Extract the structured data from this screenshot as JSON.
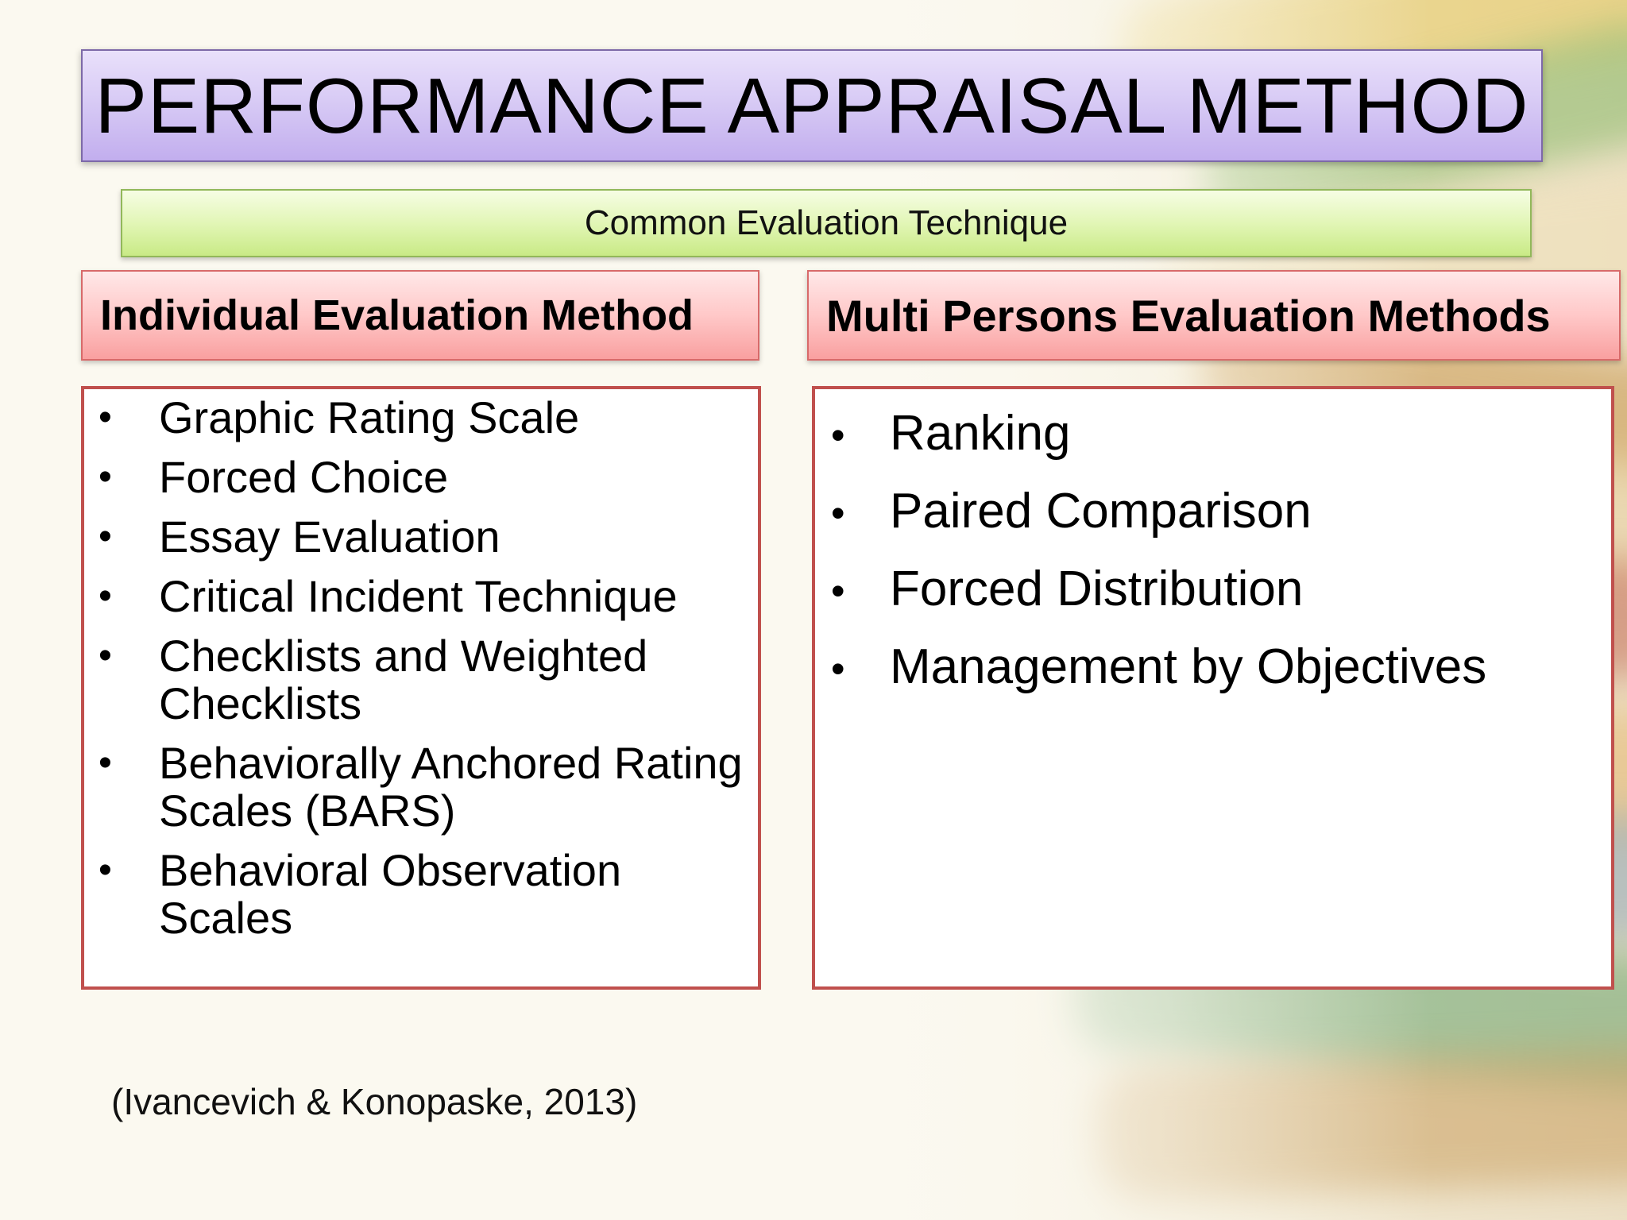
{
  "slide": {
    "title": "PERFORMANCE APPRAISAL METHOD",
    "subtitle": "Common Evaluation Technique",
    "citation": "(Ivancevich & Konopaske, 2013)",
    "bullet_glyph": "•",
    "colors": {
      "title_fill": "#d8cbf5",
      "subtitle_fill": "#e2f6b6",
      "header_fill": "#ffc8c8",
      "content_border": "#c0504d"
    },
    "left_column": {
      "header": "Individual Evaluation Method",
      "items": [
        "Graphic Rating Scale",
        "Forced Choice",
        "Essay Evaluation",
        "Critical Incident Technique",
        "Checklists and Weighted Checklists",
        "Behaviorally Anchored Rating Scales (BARS)",
        "Behavioral Observation Scales"
      ]
    },
    "right_column": {
      "header": "Multi Persons Evaluation Methods",
      "items": [
        "Ranking",
        "Paired Comparison",
        "Forced Distribution",
        "Management by Objectives"
      ]
    }
  }
}
